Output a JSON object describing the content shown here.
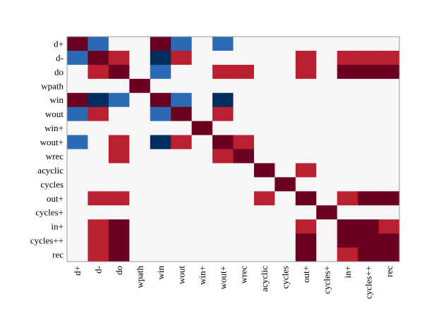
{
  "chart_data": {
    "type": "heatmap",
    "title": "",
    "xlabel": "",
    "ylabel": "",
    "labels": [
      "d+",
      "d-",
      "do",
      "wpath",
      "win",
      "wout",
      "win+",
      "wout+",
      "wrec",
      "acyclic",
      "cycles",
      "out+",
      "cycles+",
      "in+",
      "cycles++",
      "rec"
    ],
    "color_scale": {
      "-2": "#002e5e",
      "-1": "#2b6bb5",
      "0": "#f6f6f6",
      "1": "#bb2030",
      "2": "#6b0020"
    },
    "matrix": [
      [
        2,
        -1,
        0,
        0,
        2,
        -1,
        0,
        -1,
        0,
        0,
        0,
        0,
        0,
        0,
        0,
        0
      ],
      [
        -1,
        2,
        1,
        0,
        -2,
        1,
        0,
        0,
        0,
        0,
        0,
        1,
        0,
        1,
        1,
        1
      ],
      [
        0,
        1,
        2,
        0,
        -1,
        0,
        0,
        1,
        1,
        0,
        0,
        1,
        0,
        2,
        2,
        2
      ],
      [
        0,
        0,
        0,
        2,
        0,
        0,
        0,
        0,
        0,
        0,
        0,
        0,
        0,
        0,
        0,
        0
      ],
      [
        2,
        -2,
        -1,
        0,
        2,
        -1,
        0,
        -2,
        0,
        0,
        0,
        0,
        0,
        0,
        0,
        0
      ],
      [
        -1,
        1,
        0,
        0,
        -1,
        2,
        0,
        1,
        0,
        0,
        0,
        0,
        0,
        0,
        0,
        0
      ],
      [
        0,
        0,
        0,
        0,
        0,
        0,
        2,
        0,
        0,
        0,
        0,
        0,
        0,
        0,
        0,
        0
      ],
      [
        -1,
        0,
        1,
        0,
        -2,
        1,
        0,
        2,
        1,
        0,
        0,
        0,
        0,
        0,
        0,
        0
      ],
      [
        0,
        0,
        1,
        0,
        0,
        0,
        0,
        1,
        2,
        0,
        0,
        0,
        0,
        0,
        0,
        0
      ],
      [
        0,
        0,
        0,
        0,
        0,
        0,
        0,
        0,
        0,
        2,
        0,
        1,
        0,
        0,
        0,
        0
      ],
      [
        0,
        0,
        0,
        0,
        0,
        0,
        0,
        0,
        0,
        0,
        2,
        0,
        0,
        0,
        0,
        0
      ],
      [
        0,
        1,
        1,
        0,
        0,
        0,
        0,
        0,
        0,
        1,
        0,
        2,
        0,
        1,
        2,
        2
      ],
      [
        0,
        0,
        0,
        0,
        0,
        0,
        0,
        0,
        0,
        0,
        0,
        0,
        2,
        0,
        0,
        0
      ],
      [
        0,
        1,
        2,
        0,
        0,
        0,
        0,
        0,
        0,
        0,
        0,
        1,
        0,
        2,
        2,
        1
      ],
      [
        0,
        1,
        2,
        0,
        0,
        0,
        0,
        0,
        0,
        0,
        0,
        2,
        0,
        2,
        2,
        2
      ],
      [
        0,
        1,
        2,
        0,
        0,
        0,
        0,
        0,
        0,
        0,
        0,
        2,
        0,
        1,
        2,
        2
      ]
    ],
    "grid": false,
    "legend": "none"
  }
}
